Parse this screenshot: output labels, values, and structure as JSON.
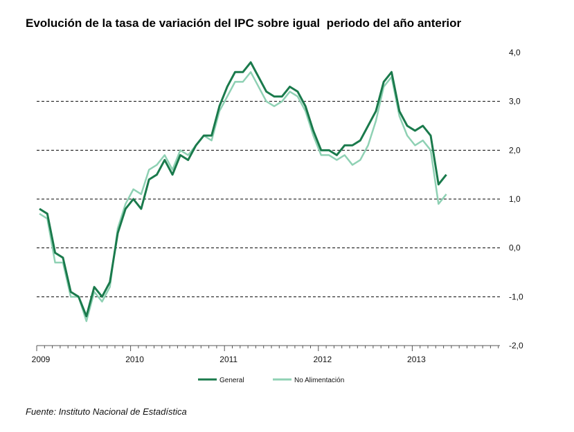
{
  "title": "Evolución de la tasa de variación del IPC sobre igual  periodo del año anterior",
  "source": "Fuente: Instituto Nacional de Estadística",
  "colors": {
    "general": "#1a7a4c",
    "no_alimentacion": "#8fd1b4",
    "grid": "#000000",
    "axis": "#555555"
  },
  "chart_data": {
    "type": "line",
    "title": "Evolución de la tasa de variación del IPC sobre igual  periodo del año anterior",
    "xlabel": "",
    "ylabel": "",
    "ylim": [
      -2.0,
      4.0
    ],
    "y_ticks": [
      4.0,
      3.0,
      2.0,
      1.0,
      0.0,
      -1.0,
      -2.0
    ],
    "y_tick_labels": [
      "4,0",
      "3,0",
      "2,0",
      "1,0",
      "0,0",
      "-1,0",
      "-2,0"
    ],
    "x_tick_labels": [
      "2009",
      "2010",
      "2011",
      "2012",
      "2013"
    ],
    "gridlines_dashed_at": [
      3.0,
      2.0,
      1.0,
      0.0,
      -1.0
    ],
    "y_axis_position": "right",
    "legend_placement": "bottom-center",
    "x_unit": "month index starting Jan 2009",
    "series": [
      {
        "name": "General",
        "values": [
          0.8,
          0.7,
          -0.1,
          -0.2,
          -0.9,
          -1.0,
          -1.4,
          -0.8,
          -1.0,
          -0.7,
          0.3,
          0.8,
          1.0,
          0.8,
          1.4,
          1.5,
          1.8,
          1.5,
          1.9,
          1.8,
          2.1,
          2.3,
          2.3,
          2.9,
          3.3,
          3.6,
          3.6,
          3.8,
          3.5,
          3.2,
          3.1,
          3.1,
          3.3,
          3.2,
          2.9,
          2.4,
          2.0,
          2.0,
          1.9,
          2.1,
          2.1,
          2.2,
          2.5,
          2.8,
          3.4,
          3.6,
          2.8,
          2.5,
          2.4,
          2.5,
          2.3,
          1.3,
          1.5
        ]
      },
      {
        "name": "No Alimentación",
        "values": [
          0.7,
          0.6,
          -0.3,
          -0.3,
          -1.0,
          -1.0,
          -1.5,
          -0.9,
          -1.1,
          -0.8,
          0.4,
          0.9,
          1.2,
          1.1,
          1.6,
          1.7,
          1.9,
          1.6,
          2.0,
          1.9,
          2.1,
          2.3,
          2.2,
          2.8,
          3.1,
          3.4,
          3.4,
          3.6,
          3.3,
          3.0,
          2.9,
          3.0,
          3.2,
          3.1,
          2.8,
          2.3,
          1.9,
          1.9,
          1.8,
          1.9,
          1.7,
          1.8,
          2.1,
          2.6,
          3.3,
          3.5,
          2.7,
          2.3,
          2.1,
          2.2,
          2.0,
          0.9,
          1.1
        ]
      }
    ]
  }
}
